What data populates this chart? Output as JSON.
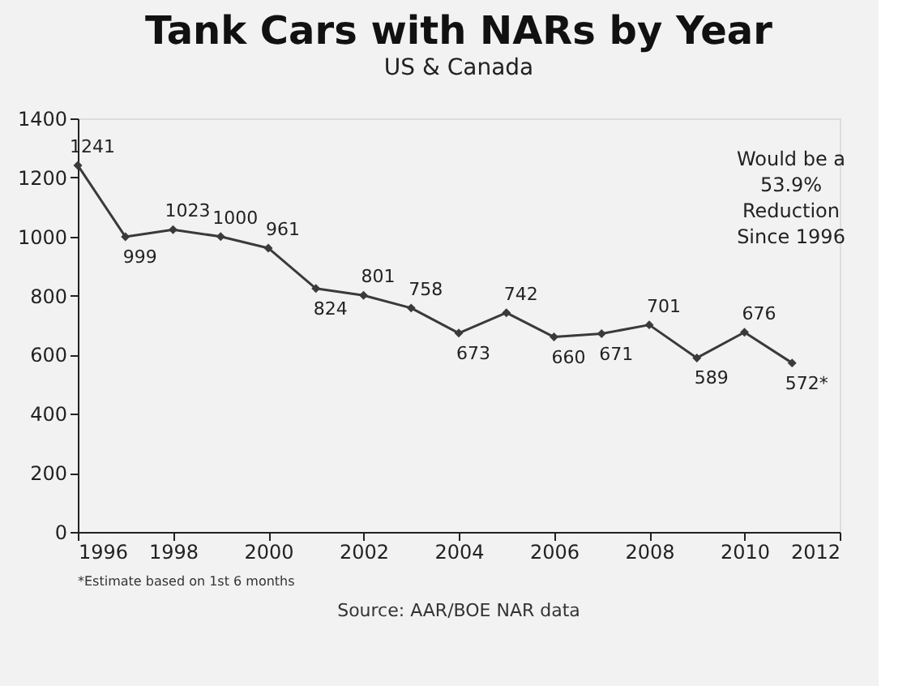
{
  "chart_data": {
    "type": "line",
    "title": "Tank Cars with NARs by Year",
    "subtitle": "US & Canada",
    "x": [
      1996,
      1997,
      1998,
      1999,
      2000,
      2001,
      2002,
      2003,
      2004,
      2005,
      2006,
      2007,
      2008,
      2009,
      2010,
      2011
    ],
    "series": [
      {
        "color": "#3a3a3a",
        "values": [
          1241,
          999,
          1023,
          1000,
          961,
          824,
          801,
          758,
          673,
          742,
          660,
          671,
          701,
          589,
          676,
          572
        ],
        "value_labels": [
          "1241",
          "999",
          "1023",
          "1000",
          "961",
          "824",
          "801",
          "758",
          "673",
          "742",
          "660",
          "671",
          "701",
          "589",
          "676",
          "572*"
        ]
      }
    ],
    "xlim": [
      1996,
      2012
    ],
    "xticks": [
      1996,
      1998,
      2000,
      2002,
      2004,
      2006,
      2008,
      2010,
      2012
    ],
    "ylim": [
      0,
      1400
    ],
    "yticks": [
      0,
      200,
      400,
      600,
      800,
      1000,
      1200,
      1400
    ],
    "grid": false,
    "marker": "diamond",
    "line_style": "solid",
    "annotations": [
      "Would be a\n53.9%\nReduction\nSince 1996",
      "*Estimate based on 1st 6 months",
      "Source: AAR/BOE NAR data"
    ]
  }
}
